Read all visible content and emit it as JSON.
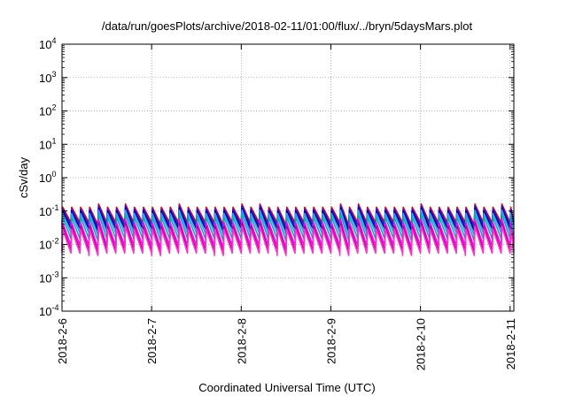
{
  "chart_data": {
    "type": "line",
    "title": "/data/run/goesPlots/archive/2018-02-11/01:00/flux/../bryn/5daysMars.plot",
    "xlabel": "Coordinated Universal Time (UTC)",
    "ylabel": "cSv/day",
    "y_scale": "log",
    "ylim": [
      0.0001,
      10000
    ],
    "y_tick_labels": [
      {
        "base": "10",
        "exp": "-4",
        "value": 0.0001
      },
      {
        "base": "10",
        "exp": "-3",
        "value": 0.001
      },
      {
        "base": "10",
        "exp": "-2",
        "value": 0.01
      },
      {
        "base": "10",
        "exp": "-1",
        "value": 0.1
      },
      {
        "base": "10",
        "exp": "0",
        "value": 1
      },
      {
        "base": "10",
        "exp": "1",
        "value": 10
      },
      {
        "base": "10",
        "exp": "2",
        "value": 100
      },
      {
        "base": "10",
        "exp": "3",
        "value": 1000
      },
      {
        "base": "10",
        "exp": "4",
        "value": 10000
      }
    ],
    "xlim": [
      "2018-02-06T00:00",
      "2018-02-11T01:00"
    ],
    "x_tick_labels": [
      {
        "label": "2018-2-6",
        "date": "2018-02-06"
      },
      {
        "label": "2018-2-7",
        "date": "2018-02-07"
      },
      {
        "label": "2018-2-8",
        "date": "2018-02-08"
      },
      {
        "label": "2018-2-9",
        "date": "2018-02-09"
      },
      {
        "label": "2018-2-10",
        "date": "2018-02-10"
      },
      {
        "label": "2018-2-11",
        "date": "2018-02-11"
      }
    ],
    "grid": true,
    "legend": "none",
    "sawtooth_period_hours": 2.4,
    "series": [
      {
        "color": "#ff0000",
        "peak": 0.13,
        "trough": 0.045
      },
      {
        "color": "#1a1aff",
        "peak": 0.115,
        "trough": 0.038
      },
      {
        "color": "#000080",
        "peak": 0.1,
        "trough": 0.03
      },
      {
        "color": "#3399ff",
        "peak": 0.085,
        "trough": 0.022
      },
      {
        "color": "#00b3b3",
        "peak": 0.065,
        "trough": 0.015
      },
      {
        "color": "#ff00ff",
        "peak": 0.045,
        "trough": 0.009
      },
      {
        "color": "#b0008a",
        "peak": 0.035,
        "trough": 0.0065
      },
      {
        "color": "#ff33cc",
        "peak": 0.028,
        "trough": 0.0055
      }
    ]
  }
}
